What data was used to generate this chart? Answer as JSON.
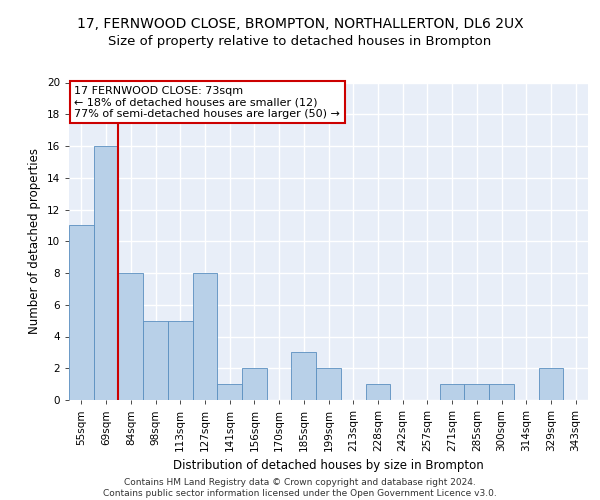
{
  "title1": "17, FERNWOOD CLOSE, BROMPTON, NORTHALLERTON, DL6 2UX",
  "title2": "Size of property relative to detached houses in Brompton",
  "xlabel": "Distribution of detached houses by size in Brompton",
  "ylabel": "Number of detached properties",
  "categories": [
    "55sqm",
    "69sqm",
    "84sqm",
    "98sqm",
    "113sqm",
    "127sqm",
    "141sqm",
    "156sqm",
    "170sqm",
    "185sqm",
    "199sqm",
    "213sqm",
    "228sqm",
    "242sqm",
    "257sqm",
    "271sqm",
    "285sqm",
    "300sqm",
    "314sqm",
    "329sqm",
    "343sqm"
  ],
  "values": [
    11,
    16,
    8,
    5,
    5,
    8,
    1,
    2,
    0,
    3,
    2,
    0,
    1,
    0,
    0,
    1,
    1,
    1,
    0,
    2,
    0
  ],
  "bar_color": "#b8d0e8",
  "bar_edge_color": "#5a8fc0",
  "annotation_box_text": "17 FERNWOOD CLOSE: 73sqm\n← 18% of detached houses are smaller (12)\n77% of semi-detached houses are larger (50) →",
  "annotation_box_color": "#ffffff",
  "annotation_box_edge_color": "#cc0000",
  "vline_color": "#cc0000",
  "ylim": [
    0,
    20
  ],
  "yticks": [
    0,
    2,
    4,
    6,
    8,
    10,
    12,
    14,
    16,
    18,
    20
  ],
  "bg_color": "#e8eef8",
  "grid_color": "#ffffff",
  "footer_text": "Contains HM Land Registry data © Crown copyright and database right 2024.\nContains public sector information licensed under the Open Government Licence v3.0.",
  "title1_fontsize": 10,
  "title2_fontsize": 9.5,
  "xlabel_fontsize": 8.5,
  "ylabel_fontsize": 8.5,
  "tick_fontsize": 7.5,
  "annotation_fontsize": 8,
  "footer_fontsize": 6.5
}
